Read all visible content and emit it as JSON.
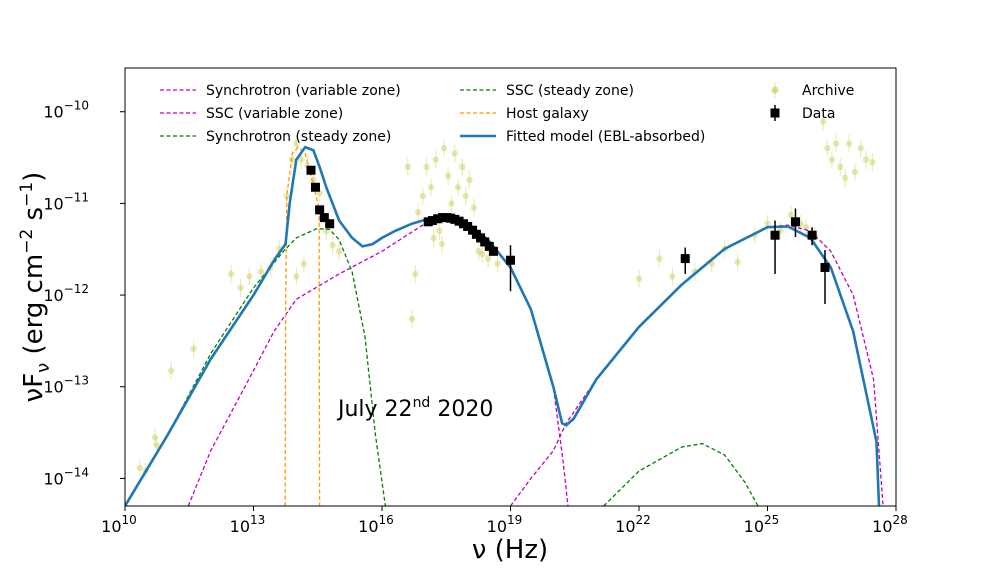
{
  "chart_data": {
    "type": "line",
    "title": "",
    "xlabel_main": "ν (Hz)",
    "ylabel_main": "νF",
    "ylabel_sub": "ν",
    "ylabel_units": " (erg cm",
    "ylabel_exp1": "−2",
    "ylabel_mid": " s",
    "ylabel_exp2": "−1",
    "ylabel_end": ")",
    "xscale": "log",
    "yscale": "log",
    "xlim": [
      10000000000.0,
      1e+28
    ],
    "ylim": [
      5e-15,
      3e-10
    ],
    "x_ticks": [
      {
        "value": 10000000000.0,
        "base": "10",
        "exp": "10"
      },
      {
        "value": 10000000000000.0,
        "base": "10",
        "exp": "13"
      },
      {
        "value": 1e+16,
        "base": "10",
        "exp": "16"
      },
      {
        "value": 1e+19,
        "base": "10",
        "exp": "19"
      },
      {
        "value": 1e+22,
        "base": "10",
        "exp": "22"
      },
      {
        "value": 1e+25,
        "base": "10",
        "exp": "25"
      },
      {
        "value": 1e+28,
        "base": "10",
        "exp": "28"
      }
    ],
    "y_ticks": [
      {
        "value": 1e-14,
        "base": "10",
        "exp": "−14"
      },
      {
        "value": 1e-13,
        "base": "10",
        "exp": "−13"
      },
      {
        "value": 1e-12,
        "base": "10",
        "exp": "−12"
      },
      {
        "value": 1e-11,
        "base": "10",
        "exp": "−11"
      },
      {
        "value": 1e-10,
        "base": "10",
        "exp": "−10"
      }
    ],
    "annotation": {
      "pre": "July 22",
      "sup": "nd",
      "post": " 2020"
    },
    "legend_position": "top",
    "colors": {
      "synchrotron_variable": "#bf00bf",
      "ssc_variable": "#bf00bf",
      "synchrotron_steady": "#008000",
      "ssc_steady": "#008000",
      "host_galaxy": "#ff9900",
      "model": "#1f77b4",
      "archive": "#bcbd22",
      "data": "#000000"
    },
    "legend": [
      {
        "key": "synchrotron_variable",
        "label": "Synchrotron (variable zone)",
        "style": "dashed"
      },
      {
        "key": "ssc_variable",
        "label": "SSC (variable zone)",
        "style": "dashed"
      },
      {
        "key": "synchrotron_steady",
        "label": "Synchrotron (steady zone)",
        "style": "dashed"
      },
      {
        "key": "ssc_steady",
        "label": "SSC (steady zone)",
        "style": "dashed"
      },
      {
        "key": "host_galaxy",
        "label": "Host galaxy",
        "style": "dashed"
      },
      {
        "key": "model",
        "label": "Fitted model (EBL-absorbed)",
        "style": "solid"
      },
      {
        "key": "archive",
        "label": "Archive",
        "style": "marker"
      },
      {
        "key": "data",
        "label": "Data",
        "style": "marker"
      }
    ],
    "series": [
      {
        "key": "model",
        "points": [
          [
            10000000000.0,
            5e-15
          ],
          [
            100000000000.0,
            3e-14
          ],
          [
            1000000000000.0,
            2e-13
          ],
          [
            10000000000000.0,
            1e-12
          ],
          [
            32000000000000.0,
            2.5e-12
          ],
          [
            56000000000000.0,
            3.6e-12
          ],
          [
            70000000000000.0,
            1e-11
          ],
          [
            100000000000000.0,
            3e-11
          ],
          [
            160000000000000.0,
            4.1e-11
          ],
          [
            250000000000000.0,
            3.8e-11
          ],
          [
            350000000000000.0,
            2.5e-11
          ],
          [
            500000000000000.0,
            1.5e-11
          ],
          [
            700000000000000.0,
            1e-11
          ],
          [
            1000000000000000.0,
            6.5e-12
          ],
          [
            2000000000000000.0,
            4.2e-12
          ],
          [
            3500000000000000.0,
            3.4e-12
          ],
          [
            6000000000000000.0,
            3.6e-12
          ],
          [
            1e+16,
            4.2e-12
          ],
          [
            2e+16,
            5e-12
          ],
          [
            5e+16,
            6e-12
          ],
          [
            1e+17,
            6.6e-12
          ],
          [
            2.5e+17,
            7e-12
          ],
          [
            5e+17,
            6.8e-12
          ],
          [
            1e+18,
            6e-12
          ],
          [
            3e+18,
            4e-12
          ],
          [
            1e+19,
            2e-12
          ],
          [
            3e+19,
            7e-13
          ],
          [
            1e+20,
            1e-13
          ],
          [
            1.6e+20,
            4e-14
          ],
          [
            2e+20,
            3.8e-14
          ],
          [
            3e+20,
            4.5e-14
          ],
          [
            1e+21,
            1.2e-13
          ],
          [
            1e+22,
            4.5e-13
          ],
          [
            1e+23,
            1.3e-12
          ],
          [
            1e+24,
            3.2e-12
          ],
          [
            1e+25,
            5.5e-12
          ],
          [
            3e+25,
            5.6e-12
          ],
          [
            1e+26,
            4.2e-12
          ],
          [
            3e+26,
            2e-12
          ],
          [
            1e+27,
            4e-13
          ],
          [
            3.5e+27,
            2.5e-14
          ],
          [
            4e+27,
            5e-15
          ]
        ]
      },
      {
        "key": "synchrotron_variable",
        "points": [
          [
            300000000000.0,
            5e-15
          ],
          [
            1000000000000.0,
            2e-14
          ],
          [
            10000000000000.0,
            1.5e-13
          ],
          [
            30000000000000.0,
            4e-13
          ],
          [
            100000000000000.0,
            9e-13
          ],
          [
            1000000000000000.0,
            1.7e-12
          ],
          [
            1e+16,
            3e-12
          ],
          [
            1e+17,
            6e-12
          ],
          [
            3e+17,
            6.8e-12
          ],
          [
            1e+18,
            6e-12
          ],
          [
            3e+18,
            4e-12
          ],
          [
            1e+19,
            2e-12
          ],
          [
            3e+19,
            7e-13
          ],
          [
            1e+20,
            1e-13
          ],
          [
            1.7e+20,
            1.5e-14
          ],
          [
            2.2e+20,
            5e-15
          ]
        ]
      },
      {
        "key": "ssc_variable",
        "points": [
          [
            1e+19,
            5e-15
          ],
          [
            3e+19,
            1e-14
          ],
          [
            1e+20,
            2e-14
          ],
          [
            2e+20,
            4e-14
          ],
          [
            1e+21,
            1.2e-13
          ],
          [
            1e+22,
            4.5e-13
          ],
          [
            1e+23,
            1.3e-12
          ],
          [
            1e+24,
            3.2e-12
          ],
          [
            1e+25,
            5.5e-12
          ],
          [
            3e+25,
            5.8e-12
          ],
          [
            1e+26,
            5e-12
          ],
          [
            3e+26,
            3e-12
          ],
          [
            1e+27,
            1e-12
          ],
          [
            3e+27,
            1.2e-13
          ],
          [
            5e+27,
            5e-15
          ]
        ]
      },
      {
        "key": "synchrotron_steady",
        "points": [
          [
            10000000000.0,
            5e-15
          ],
          [
            100000000000.0,
            3e-14
          ],
          [
            1000000000000.0,
            2.3e-13
          ],
          [
            10000000000000.0,
            1.2e-12
          ],
          [
            50000000000000.0,
            3e-12
          ],
          [
            100000000000000.0,
            4.2e-12
          ],
          [
            300000000000000.0,
            5.3e-12
          ],
          [
            600000000000000.0,
            5.2e-12
          ],
          [
            1000000000000000.0,
            4e-12
          ],
          [
            2000000000000000.0,
            1.8e-12
          ],
          [
            4000000000000000.0,
            3.5e-13
          ],
          [
            7000000000000000.0,
            3e-14
          ],
          [
            1.2e+16,
            5e-15
          ]
        ]
      },
      {
        "key": "ssc_steady",
        "points": [
          [
            1.5e+21,
            5e-15
          ],
          [
            1e+22,
            1.2e-14
          ],
          [
            1e+23,
            2.2e-14
          ],
          [
            3e+23,
            2.4e-14
          ],
          [
            1e+24,
            1.8e-14
          ],
          [
            3e+24,
            9e-15
          ],
          [
            6e+24,
            5e-15
          ]
        ]
      },
      {
        "key": "host_galaxy",
        "points": [
          [
            55000000000000.0,
            5e-15
          ],
          [
            56000000000000.0,
            6e-13
          ],
          [
            60000000000000.0,
            1.2e-11
          ],
          [
            80000000000000.0,
            3.5e-11
          ],
          [
            110000000000000.0,
            4.1e-11
          ],
          [
            160000000000000.0,
            3.5e-11
          ],
          [
            220000000000000.0,
            2e-11
          ],
          [
            320000000000000.0,
            1e-11
          ],
          [
            340000000000000.0,
            8e-12
          ],
          [
            350000000000000.0,
            5e-15
          ]
        ]
      }
    ],
    "data_points": [
      {
        "x": 220000000000000.0,
        "y": 2.3e-11
      },
      {
        "x": 280000000000000.0,
        "y": 1.5e-11
      },
      {
        "x": 350000000000000.0,
        "y": 8.5e-12
      },
      {
        "x": 450000000000000.0,
        "y": 7e-12
      },
      {
        "x": 600000000000000.0,
        "y": 6e-12
      },
      {
        "x": 1.2e+17,
        "y": 6.3e-12
      },
      {
        "x": 1.5e+17,
        "y": 6.5e-12
      },
      {
        "x": 2e+17,
        "y": 6.8e-12
      },
      {
        "x": 2.6e+17,
        "y": 7e-12
      },
      {
        "x": 3.3e+17,
        "y": 7e-12
      },
      {
        "x": 4e+17,
        "y": 6.9e-12
      },
      {
        "x": 5e+17,
        "y": 6.7e-12
      },
      {
        "x": 6.3e+17,
        "y": 6.4e-12
      },
      {
        "x": 8e+17,
        "y": 6e-12
      },
      {
        "x": 1e+18,
        "y": 5.6e-12
      },
      {
        "x": 1.3e+18,
        "y": 5.1e-12
      },
      {
        "x": 1.6e+18,
        "y": 4.6e-12
      },
      {
        "x": 2e+18,
        "y": 4.2e-12
      },
      {
        "x": 2.5e+18,
        "y": 3.8e-12
      },
      {
        "x": 3.2e+18,
        "y": 3.4e-12
      },
      {
        "x": 4e+18,
        "y": 3e-12
      },
      {
        "x": 1e+19,
        "y": 2.4e-12,
        "ylo": 1.1e-12,
        "yhi": 3.5e-12
      },
      {
        "x": 1.2e+23,
        "y": 2.5e-12,
        "ylo": 1.7e-12,
        "yhi": 3.3e-12
      },
      {
        "x": 1.5e+25,
        "y": 4.5e-12,
        "ylo": 1.7e-12,
        "yhi": 6.5e-12
      },
      {
        "x": 4.5e+25,
        "y": 6.3e-12,
        "ylo": 4.3e-12,
        "yhi": 8.8e-12
      },
      {
        "x": 1.1e+26,
        "y": 4.5e-12,
        "ylo": 3.5e-12,
        "yhi": 5.5e-12
      },
      {
        "x": 2.2e+26,
        "y": 2e-12,
        "ylo": 8e-13,
        "yhi": 3.1e-12
      }
    ],
    "archive_points": [
      {
        "x": 22000000000.0,
        "y": 1.3e-14
      },
      {
        "x": 30000000000.0,
        "y": 1.2e-14
      },
      {
        "x": 50000000000.0,
        "y": 2.8e-14
      },
      {
        "x": 55000000000.0,
        "y": 2.3e-14
      },
      {
        "x": 120000000000.0,
        "y": 1.5e-13
      },
      {
        "x": 400000000000.0,
        "y": 2.6e-13
      },
      {
        "x": 3000000000000.0,
        "y": 1.7e-12
      },
      {
        "x": 5000000000000.0,
        "y": 1.2e-12
      },
      {
        "x": 8000000000000.0,
        "y": 1.6e-12
      },
      {
        "x": 15000000000000.0,
        "y": 1.8e-12
      },
      {
        "x": 25000000000000.0,
        "y": 2e-12
      },
      {
        "x": 40000000000000.0,
        "y": 3.2e-12
      },
      {
        "x": 60000000000000.0,
        "y": 1.2e-11
      },
      {
        "x": 80000000000000.0,
        "y": 3e-11
      },
      {
        "x": 100000000000000.0,
        "y": 4.5e-11
      },
      {
        "x": 130000000000000.0,
        "y": 3e-11
      },
      {
        "x": 180000000000000.0,
        "y": 2.6e-11
      },
      {
        "x": 250000000000000.0,
        "y": 1.8e-11
      },
      {
        "x": 100000000000000.0,
        "y": 1.6e-12
      },
      {
        "x": 150000000000000.0,
        "y": 2.2e-12
      },
      {
        "x": 350000000000000.0,
        "y": 1.3e-11
      },
      {
        "x": 500000000000000.0,
        "y": 5e-12
      },
      {
        "x": 700000000000000.0,
        "y": 3.5e-12
      },
      {
        "x": 1000000000000000.0,
        "y": 3e-12
      },
      {
        "x": 4e+16,
        "y": 2.5e-11
      },
      {
        "x": 5e+16,
        "y": 5.5e-13
      },
      {
        "x": 6e+16,
        "y": 1.7e-12
      },
      {
        "x": 7e+16,
        "y": 8e-12
      },
      {
        "x": 9e+16,
        "y": 1.2e-11
      },
      {
        "x": 1.1e+17,
        "y": 2.5e-11
      },
      {
        "x": 1.4e+17,
        "y": 1.5e-11
      },
      {
        "x": 1.8e+17,
        "y": 3e-11
      },
      {
        "x": 2.2e+17,
        "y": 5e-12
      },
      {
        "x": 2.8e+17,
        "y": 4e-11
      },
      {
        "x": 3.5e+17,
        "y": 2e-11
      },
      {
        "x": 4.2e+17,
        "y": 1e-11
      },
      {
        "x": 5e+17,
        "y": 3.5e-11
      },
      {
        "x": 6e+17,
        "y": 1.5e-11
      },
      {
        "x": 7.5e+17,
        "y": 2.5e-11
      },
      {
        "x": 9e+17,
        "y": 1.2e-11
      },
      {
        "x": 1.1e+18,
        "y": 1.8e-11
      },
      {
        "x": 1.4e+18,
        "y": 9e-12
      },
      {
        "x": 1.8e+18,
        "y": 3e-12
      },
      {
        "x": 2.2e+18,
        "y": 2.8e-12
      },
      {
        "x": 3e+18,
        "y": 2.5e-12
      },
      {
        "x": 5e+18,
        "y": 2.2e-12
      },
      {
        "x": 1.6e+17,
        "y": 4.2e-12
      },
      {
        "x": 2.5e+17,
        "y": 3.6e-12
      },
      {
        "x": 1e+22,
        "y": 1.5e-12
      },
      {
        "x": 3e+22,
        "y": 2.5e-12
      },
      {
        "x": 6e+22,
        "y": 1.6e-12
      },
      {
        "x": 2e+23,
        "y": 1.8e-12
      },
      {
        "x": 5e+23,
        "y": 2.2e-12
      },
      {
        "x": 1e+24,
        "y": 3.2e-12
      },
      {
        "x": 2e+24,
        "y": 2.3e-12
      },
      {
        "x": 5e+24,
        "y": 4.5e-12
      },
      {
        "x": 1e+25,
        "y": 6e-12
      },
      {
        "x": 2e+25,
        "y": 5e-12
      },
      {
        "x": 3.5e+25,
        "y": 7.5e-12
      },
      {
        "x": 6e+25,
        "y": 6e-12
      },
      {
        "x": 8e+25,
        "y": 5.5e-12
      },
      {
        "x": 1.3e+26,
        "y": 4.5e-12
      },
      {
        "x": 2e+26,
        "y": 7.8e-11
      },
      {
        "x": 2.5e+26,
        "y": 4e-11
      },
      {
        "x": 3.2e+26,
        "y": 3e-11
      },
      {
        "x": 4e+26,
        "y": 4.5e-11
      },
      {
        "x": 5e+26,
        "y": 2.5e-11
      },
      {
        "x": 6.5e+26,
        "y": 1.9e-11
      },
      {
        "x": 8e+26,
        "y": 4.5e-11
      },
      {
        "x": 1.1e+27,
        "y": 2.2e-11
      },
      {
        "x": 1.5e+27,
        "y": 4e-11
      },
      {
        "x": 2e+27,
        "y": 3e-11
      },
      {
        "x": 2.8e+27,
        "y": 2.8e-11
      }
    ]
  }
}
